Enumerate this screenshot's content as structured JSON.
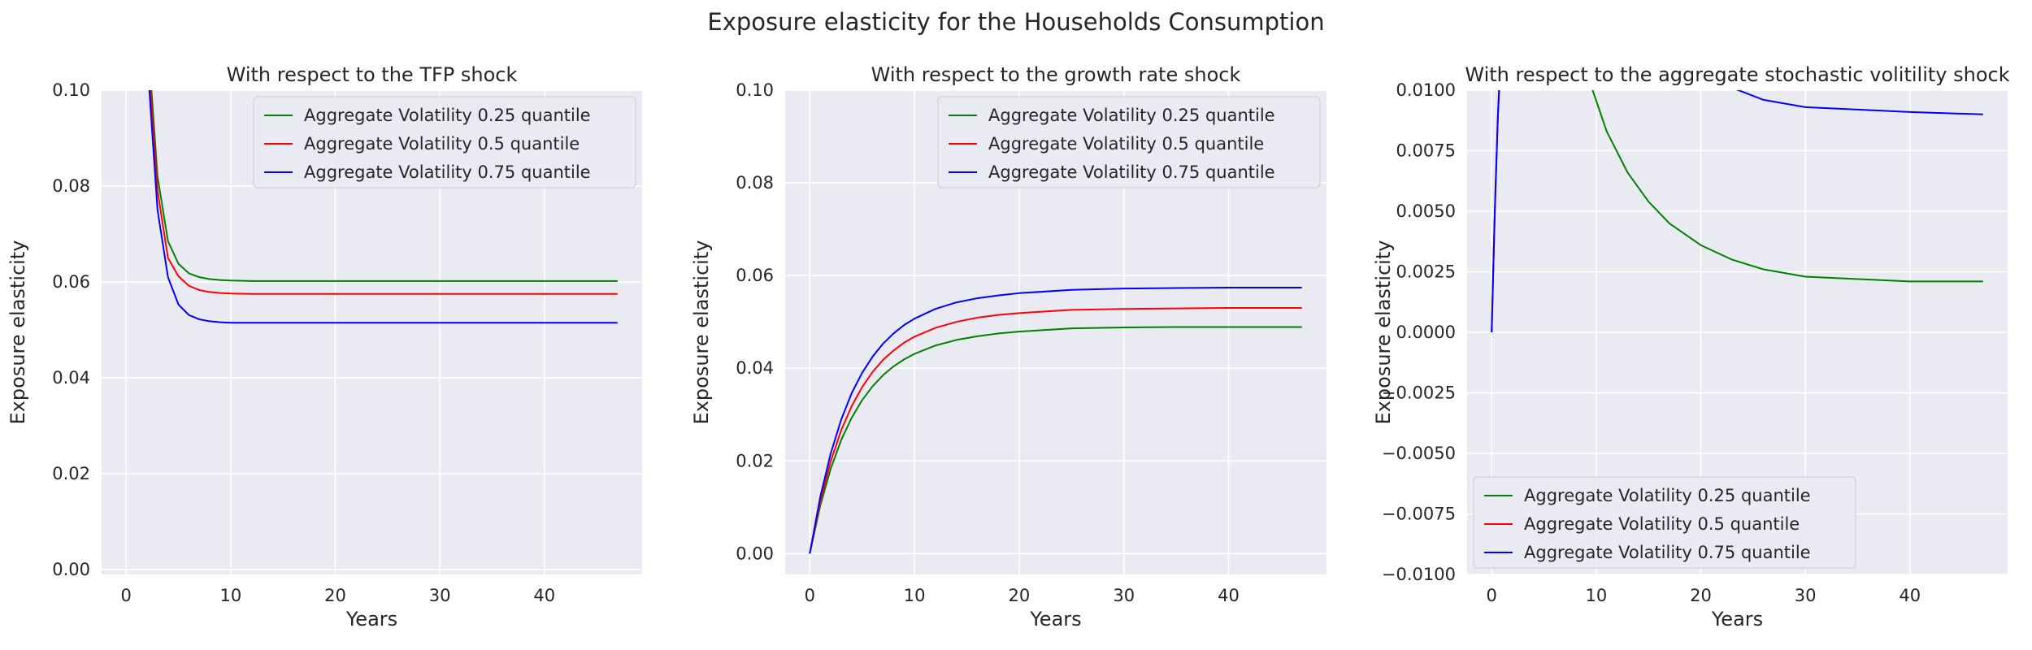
{
  "figure": {
    "title": "Exposure elasticity for the Households Consumption"
  },
  "colors": {
    "q25": "#008000",
    "q50": "#ff0000",
    "q75": "#0000ff",
    "panel_bg": "#eaeaf2",
    "grid": "#ffffff"
  },
  "chart_data": [
    {
      "type": "line",
      "title": "With respect to the TFP shock",
      "xlabel": "Years",
      "ylabel": "Exposure elasticity",
      "xlim": [
        -2.35,
        49.35
      ],
      "ylim": [
        -0.001,
        0.1
      ],
      "xticks": [
        0,
        10,
        20,
        30,
        40
      ],
      "xtick_labels": [
        "0",
        "10",
        "20",
        "30",
        "40"
      ],
      "yticks": [
        0.0,
        0.02,
        0.04,
        0.06,
        0.08,
        0.1
      ],
      "ytick_labels": [
        "0.00",
        "0.02",
        "0.04",
        "0.06",
        "0.08",
        "0.10"
      ],
      "grid": true,
      "legend_position": "upper right",
      "series": [
        {
          "name": "Aggregate Volatility 0.25 quantile",
          "color": "#008000",
          "x": [
            2,
            3,
            4,
            5,
            6,
            7,
            8,
            9,
            10,
            12,
            15,
            20,
            30,
            40,
            47
          ],
          "y": [
            0.113,
            0.082,
            0.0685,
            0.0638,
            0.0618,
            0.061,
            0.0606,
            0.0604,
            0.0603,
            0.0602,
            0.0602,
            0.0602,
            0.0602,
            0.0602,
            0.0602
          ]
        },
        {
          "name": "Aggregate Volatility 0.5 quantile",
          "color": "#ff0000",
          "x": [
            2,
            3,
            4,
            5,
            6,
            7,
            8,
            9,
            10,
            12,
            15,
            20,
            30,
            40,
            47
          ],
          "y": [
            0.111,
            0.079,
            0.065,
            0.0612,
            0.0592,
            0.0583,
            0.0579,
            0.0577,
            0.0576,
            0.0575,
            0.0575,
            0.0575,
            0.0575,
            0.0575,
            0.0575
          ]
        },
        {
          "name": "Aggregate Volatility 0.75 quantile",
          "color": "#0000ff",
          "x": [
            2,
            3,
            4,
            5,
            6,
            7,
            8,
            9,
            10,
            12,
            15,
            20,
            30,
            40,
            47
          ],
          "y": [
            0.107,
            0.075,
            0.061,
            0.0553,
            0.0531,
            0.0522,
            0.0518,
            0.0516,
            0.0515,
            0.0515,
            0.0515,
            0.0515,
            0.0515,
            0.0515,
            0.0515
          ]
        }
      ]
    },
    {
      "type": "line",
      "title": "With respect to the growth rate shock",
      "xlabel": "Years",
      "ylabel": "Exposure elasticity",
      "xlim": [
        -2.35,
        49.35
      ],
      "ylim": [
        -0.0045,
        0.1
      ],
      "xticks": [
        0,
        10,
        20,
        30,
        40
      ],
      "xtick_labels": [
        "0",
        "10",
        "20",
        "30",
        "40"
      ],
      "yticks": [
        0.0,
        0.02,
        0.04,
        0.06,
        0.08,
        0.1
      ],
      "ytick_labels": [
        "0.00",
        "0.02",
        "0.04",
        "0.06",
        "0.08",
        "0.10"
      ],
      "grid": true,
      "legend_position": "upper right",
      "series": [
        {
          "name": "Aggregate Volatility 0.25 quantile",
          "color": "#008000",
          "x": [
            0,
            1,
            2,
            3,
            4,
            5,
            6,
            7,
            8,
            9,
            10,
            12,
            14,
            16,
            18,
            20,
            25,
            30,
            35,
            40,
            47
          ],
          "y": [
            0.0,
            0.0103,
            0.0183,
            0.0245,
            0.0293,
            0.0331,
            0.0361,
            0.0385,
            0.0404,
            0.0419,
            0.0431,
            0.0449,
            0.0461,
            0.0469,
            0.0475,
            0.0479,
            0.0486,
            0.0488,
            0.0489,
            0.0489,
            0.0489
          ]
        },
        {
          "name": "Aggregate Volatility 0.5 quantile",
          "color": "#ff0000",
          "x": [
            0,
            1,
            2,
            3,
            4,
            5,
            6,
            7,
            8,
            9,
            10,
            12,
            14,
            16,
            18,
            20,
            25,
            30,
            35,
            40,
            47
          ],
          "y": [
            0.0,
            0.0112,
            0.0199,
            0.0266,
            0.0318,
            0.0359,
            0.0392,
            0.0418,
            0.0438,
            0.0455,
            0.0468,
            0.0487,
            0.05,
            0.0509,
            0.0515,
            0.0519,
            0.0526,
            0.0528,
            0.0529,
            0.053,
            0.053
          ]
        },
        {
          "name": "Aggregate Volatility 0.75 quantile",
          "color": "#0000ff",
          "x": [
            0,
            1,
            2,
            3,
            4,
            5,
            6,
            7,
            8,
            9,
            10,
            12,
            14,
            16,
            18,
            20,
            25,
            30,
            35,
            40,
            47
          ],
          "y": [
            0.0,
            0.0122,
            0.0216,
            0.0289,
            0.0346,
            0.039,
            0.0425,
            0.0453,
            0.0475,
            0.0493,
            0.0507,
            0.0528,
            0.0542,
            0.0551,
            0.0557,
            0.0562,
            0.0569,
            0.0572,
            0.0573,
            0.0574,
            0.0574
          ]
        }
      ]
    },
    {
      "type": "line",
      "title": "With respect to the aggregate stochastic volitility shock",
      "xlabel": "Years",
      "ylabel": "Exposure elasticity",
      "xlim": [
        -2.35,
        49.35
      ],
      "ylim": [
        -0.01,
        0.01
      ],
      "xticks": [
        0,
        10,
        20,
        30,
        40
      ],
      "xtick_labels": [
        "0",
        "10",
        "20",
        "30",
        "40"
      ],
      "yticks": [
        -0.01,
        -0.0075,
        -0.005,
        -0.0025,
        0.0,
        0.0025,
        0.005,
        0.0075,
        0.01
      ],
      "ytick_labels": [
        "−0.0100",
        "−0.0075",
        "−0.0050",
        "−0.0025",
        "0.0000",
        "0.0025",
        "0.0050",
        "0.0075",
        "0.0100"
      ],
      "grid": true,
      "legend_position": "lower left",
      "series": [
        {
          "name": "Aggregate Volatility 0.25 quantile",
          "color": "#008000",
          "x": [
            9.5,
            11,
            13,
            15,
            17,
            20,
            23,
            26,
            30,
            35,
            40,
            47
          ],
          "y": [
            0.0102,
            0.0083,
            0.0066,
            0.0054,
            0.0045,
            0.0036,
            0.003,
            0.0026,
            0.0023,
            0.0022,
            0.0021,
            0.0021
          ]
        },
        {
          "name": "Aggregate Volatility 0.5 quantile",
          "color": "#ff0000",
          "x": [
            0,
            0.3,
            0.6,
            0.8
          ],
          "y": [
            0.0,
            0.005,
            0.009,
            0.0108
          ]
        },
        {
          "name": "Aggregate Volatility 0.75 quantile",
          "color": "#0000ff",
          "x": [
            0,
            0.3,
            0.6,
            0.8,
            23,
            26,
            30,
            35,
            40,
            47
          ],
          "y": [
            0.0,
            0.005,
            0.009,
            0.0108,
            0.0101,
            0.0096,
            0.0093,
            0.0092,
            0.0091,
            0.009
          ]
        }
      ]
    }
  ]
}
